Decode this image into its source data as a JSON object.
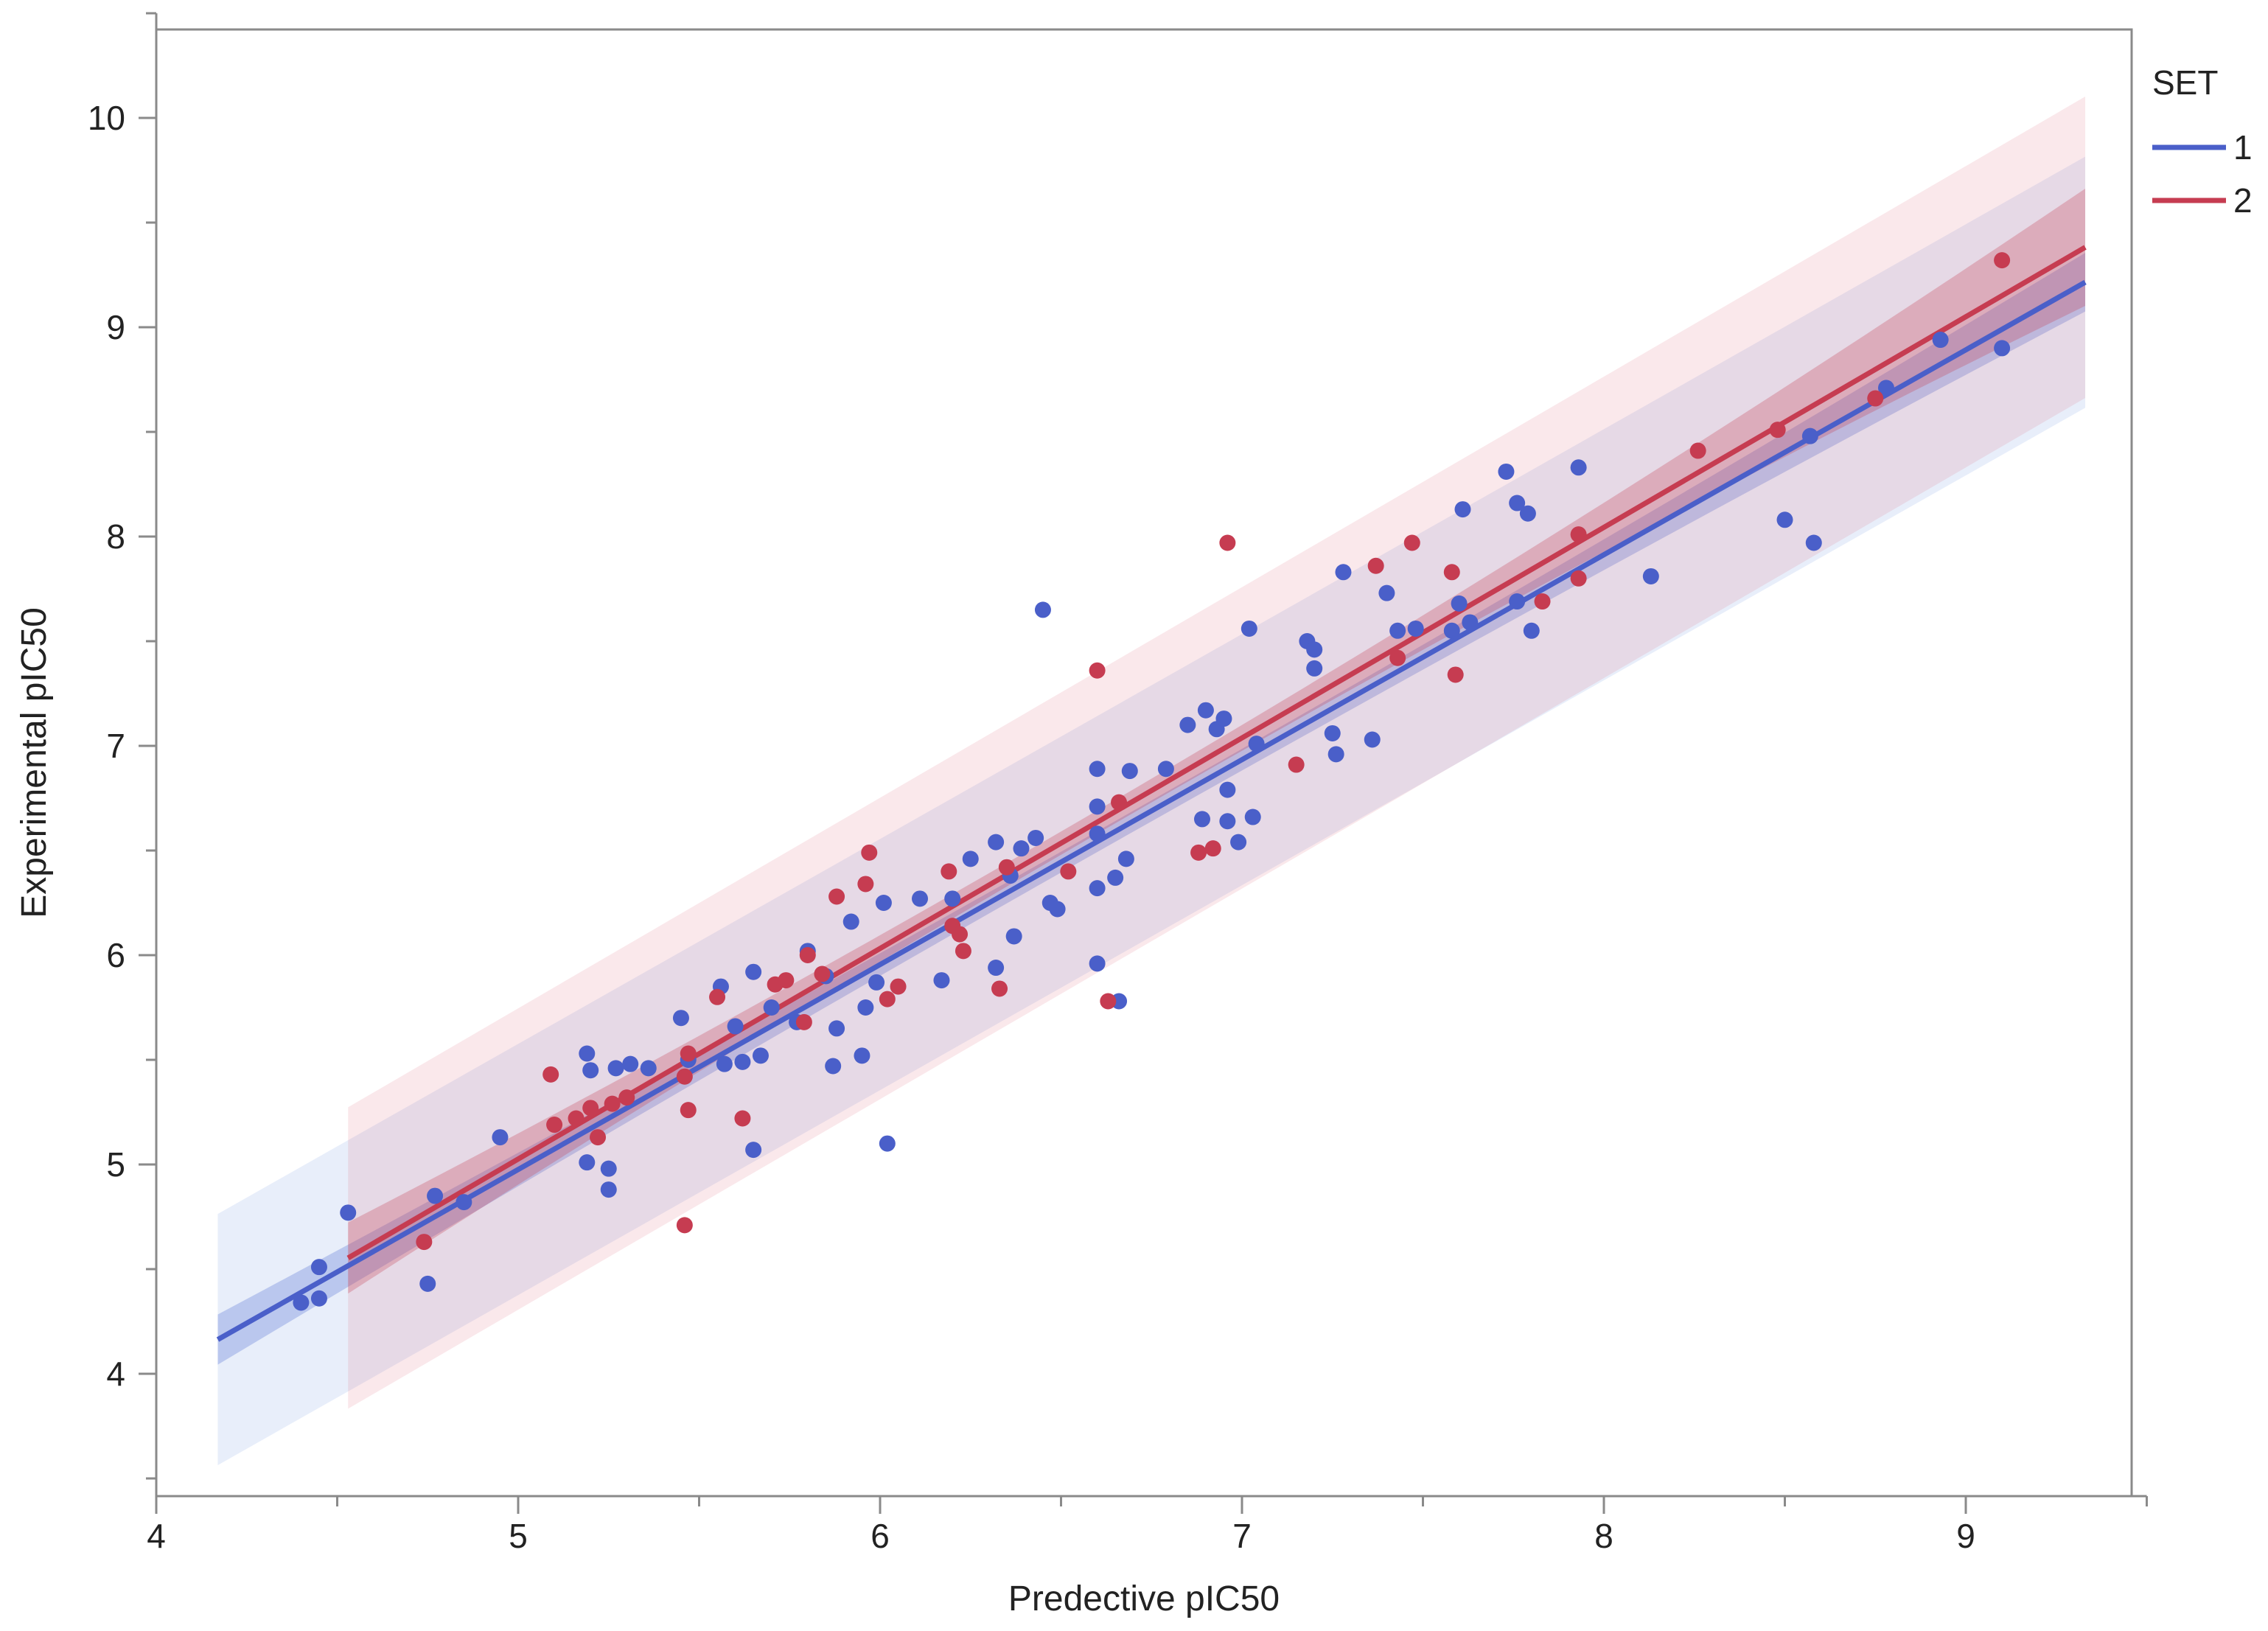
{
  "chart_data": {
    "type": "scatter",
    "title": "",
    "xlabel": "Predective pIC50",
    "ylabel": "Experimental pIC50",
    "xlim": [
      4,
      9.5
    ],
    "ylim": [
      3.5,
      10.5
    ],
    "x_ticks": [
      4,
      5,
      6,
      7,
      8,
      9
    ],
    "y_ticks": [
      4,
      5,
      6,
      7,
      8,
      9,
      10
    ],
    "grid": false,
    "legend": {
      "title": "SET",
      "placement": "right-top"
    },
    "series": [
      {
        "name": "1",
        "color": "#4a5fc9",
        "fit": {
          "x_range": [
            4.17,
            9.33
          ],
          "intercept": 0.081,
          "slope": 0.979,
          "ci_halfwidth": [
            0.12,
            0.05,
            0.14
          ],
          "pi_halfwidth": 0.6
        },
        "points": [
          [
            4.4,
            4.34
          ],
          [
            4.45,
            4.36
          ],
          [
            4.45,
            4.51
          ],
          [
            4.53,
            4.77
          ],
          [
            4.75,
            4.43
          ],
          [
            4.77,
            4.85
          ],
          [
            4.85,
            4.82
          ],
          [
            4.95,
            5.13
          ],
          [
            5.19,
            5.53
          ],
          [
            5.19,
            5.01
          ],
          [
            5.25,
            4.88
          ],
          [
            5.25,
            4.98
          ],
          [
            5.2,
            5.45
          ],
          [
            5.27,
            5.46
          ],
          [
            5.31,
            5.48
          ],
          [
            5.36,
            5.46
          ],
          [
            5.45,
            5.7
          ],
          [
            5.47,
            5.5
          ],
          [
            5.56,
            5.85
          ],
          [
            5.57,
            5.48
          ],
          [
            5.6,
            5.66
          ],
          [
            5.62,
            5.49
          ],
          [
            5.65,
            5.07
          ],
          [
            5.65,
            5.92
          ],
          [
            5.67,
            5.52
          ],
          [
            5.7,
            5.75
          ],
          [
            5.77,
            5.68
          ],
          [
            5.8,
            6.02
          ],
          [
            5.85,
            5.9
          ],
          [
            5.87,
            5.47
          ],
          [
            5.88,
            5.65
          ],
          [
            5.92,
            6.16
          ],
          [
            5.95,
            5.52
          ],
          [
            5.96,
            5.75
          ],
          [
            5.99,
            5.87
          ],
          [
            6.01,
            6.25
          ],
          [
            6.02,
            5.1
          ],
          [
            6.11,
            6.27
          ],
          [
            6.17,
            5.88
          ],
          [
            6.2,
            6.27
          ],
          [
            6.25,
            6.46
          ],
          [
            6.32,
            6.54
          ],
          [
            6.32,
            5.94
          ],
          [
            6.36,
            6.38
          ],
          [
            6.37,
            6.09
          ],
          [
            6.39,
            6.51
          ],
          [
            6.43,
            6.56
          ],
          [
            6.45,
            7.65
          ],
          [
            6.47,
            6.25
          ],
          [
            6.49,
            6.22
          ],
          [
            6.6,
            5.96
          ],
          [
            6.6,
            6.32
          ],
          [
            6.6,
            6.58
          ],
          [
            6.6,
            6.89
          ],
          [
            6.6,
            6.71
          ],
          [
            6.65,
            6.37
          ],
          [
            6.66,
            5.78
          ],
          [
            6.68,
            6.46
          ],
          [
            6.69,
            6.88
          ],
          [
            6.79,
            6.89
          ],
          [
            6.85,
            7.1
          ],
          [
            6.89,
            6.65
          ],
          [
            6.9,
            7.17
          ],
          [
            6.93,
            7.08
          ],
          [
            6.95,
            7.13
          ],
          [
            6.96,
            6.64
          ],
          [
            6.96,
            6.79
          ],
          [
            6.99,
            6.54
          ],
          [
            7.02,
            7.56
          ],
          [
            7.03,
            6.66
          ],
          [
            7.04,
            7.01
          ],
          [
            7.18,
            7.5
          ],
          [
            7.2,
            7.46
          ],
          [
            7.2,
            7.37
          ],
          [
            7.25,
            7.06
          ],
          [
            7.26,
            6.96
          ],
          [
            7.28,
            7.83
          ],
          [
            7.36,
            7.03
          ],
          [
            7.4,
            7.73
          ],
          [
            7.43,
            7.55
          ],
          [
            7.48,
            7.56
          ],
          [
            7.58,
            7.55
          ],
          [
            7.6,
            7.68
          ],
          [
            7.61,
            8.13
          ],
          [
            7.63,
            7.59
          ],
          [
            7.73,
            8.31
          ],
          [
            7.76,
            8.16
          ],
          [
            7.76,
            7.69
          ],
          [
            7.79,
            8.11
          ],
          [
            7.8,
            7.55
          ],
          [
            7.93,
            8.33
          ],
          [
            8.13,
            7.81
          ],
          [
            8.5,
            8.08
          ],
          [
            8.57,
            8.48
          ],
          [
            8.58,
            7.97
          ],
          [
            8.78,
            8.71
          ],
          [
            8.93,
            8.94
          ],
          [
            9.1,
            8.9
          ]
        ]
      },
      {
        "name": "2",
        "color": "#c63c51",
        "fit": {
          "x_range": [
            4.53,
            9.33
          ],
          "intercept": -0.004,
          "slope": 1.006,
          "ci_halfwidth": [
            0.17,
            0.06,
            0.28
          ],
          "pi_halfwidth": 0.72
        },
        "points": [
          [
            4.74,
            4.63
          ],
          [
            5.09,
            5.43
          ],
          [
            5.1,
            5.19
          ],
          [
            5.16,
            5.22
          ],
          [
            5.2,
            5.27
          ],
          [
            5.22,
            5.13
          ],
          [
            5.26,
            5.29
          ],
          [
            5.3,
            5.32
          ],
          [
            5.46,
            5.42
          ],
          [
            5.46,
            4.71
          ],
          [
            5.47,
            5.53
          ],
          [
            5.47,
            5.26
          ],
          [
            5.55,
            5.8
          ],
          [
            5.62,
            5.22
          ],
          [
            5.71,
            5.86
          ],
          [
            5.74,
            5.88
          ],
          [
            5.79,
            5.68
          ],
          [
            5.8,
            6.0
          ],
          [
            5.84,
            5.91
          ],
          [
            5.88,
            6.28
          ],
          [
            5.96,
            6.34
          ],
          [
            5.97,
            6.49
          ],
          [
            6.02,
            5.79
          ],
          [
            6.05,
            5.85
          ],
          [
            6.19,
            6.4
          ],
          [
            6.2,
            6.14
          ],
          [
            6.22,
            6.1
          ],
          [
            6.23,
            6.02
          ],
          [
            6.33,
            5.84
          ],
          [
            6.35,
            6.42
          ],
          [
            6.52,
            6.4
          ],
          [
            6.6,
            7.36
          ],
          [
            6.63,
            5.78
          ],
          [
            6.66,
            6.73
          ],
          [
            6.88,
            6.49
          ],
          [
            6.92,
            6.51
          ],
          [
            6.96,
            7.97
          ],
          [
            7.15,
            6.91
          ],
          [
            7.37,
            7.86
          ],
          [
            7.43,
            7.42
          ],
          [
            7.47,
            7.97
          ],
          [
            7.58,
            7.83
          ],
          [
            7.59,
            7.34
          ],
          [
            7.83,
            7.69
          ],
          [
            7.93,
            8.01
          ],
          [
            7.93,
            7.8
          ],
          [
            8.26,
            8.41
          ],
          [
            8.48,
            8.51
          ],
          [
            8.75,
            8.66
          ],
          [
            9.1,
            9.32
          ]
        ]
      }
    ]
  }
}
